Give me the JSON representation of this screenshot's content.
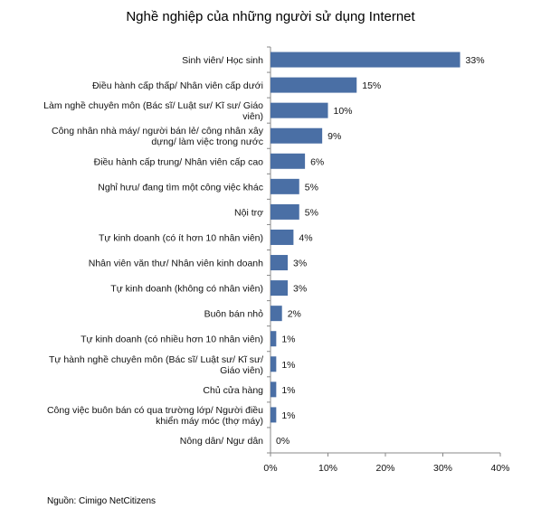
{
  "chart_data": {
    "type": "bar",
    "orientation": "horizontal",
    "title": "Nghề nghiệp của những người sử dụng Internet",
    "categories": [
      [
        "Sinh viên/ Học sinh"
      ],
      [
        "Điều hành cấp thấp/ Nhân viên cấp dưới"
      ],
      [
        "Làm nghề chuyên môn (Bác sĩ/ Luật sư/ Kĩ sư/ Giáo",
        "viên)"
      ],
      [
        "Công nhân nhà máy/ người bán lẻ/ công nhân xây",
        "dựng/ làm việc trong nước"
      ],
      [
        "Điều hành cấp trung/ Nhân viên cấp cao"
      ],
      [
        "Nghỉ hưu/ đang tìm một công việc khác"
      ],
      [
        "Nội trợ"
      ],
      [
        "Tự kinh doanh (có ít hơn 10 nhân viên)"
      ],
      [
        "Nhân viên văn thư/ Nhân viên kinh doanh"
      ],
      [
        "Tự kinh doanh (không có nhân viên)"
      ],
      [
        "Buôn bán nhỏ"
      ],
      [
        "Tự kinh doanh (có nhiều hơn 10 nhân viên)"
      ],
      [
        "Tự hành nghề chuyên môn (Bác sĩ/ Luật sư/ Kĩ sư/",
        "Giáo viên)"
      ],
      [
        "Chủ cửa hàng"
      ],
      [
        "Công việc buôn bán có qua trường lớp/ Người điều",
        "khiển máy móc (thợ máy)"
      ],
      [
        "Nông dân/ Ngư dân"
      ]
    ],
    "values": [
      33,
      15,
      10,
      9,
      6,
      5,
      5,
      4,
      3,
      3,
      2,
      1,
      1,
      1,
      1,
      0
    ],
    "value_labels": [
      "33%",
      "15%",
      "10%",
      "9%",
      "6%",
      "5%",
      "5%",
      "4%",
      "3%",
      "3%",
      "2%",
      "1%",
      "1%",
      "1%",
      "1%",
      "0%"
    ],
    "xticks": [
      "0%",
      "10%",
      "20%",
      "30%",
      "40%"
    ],
    "xlim": [
      0,
      40
    ],
    "bar_color": "#4A6FA5",
    "grid": false
  },
  "source": "Nguồn: Cimigo NetCitizens"
}
